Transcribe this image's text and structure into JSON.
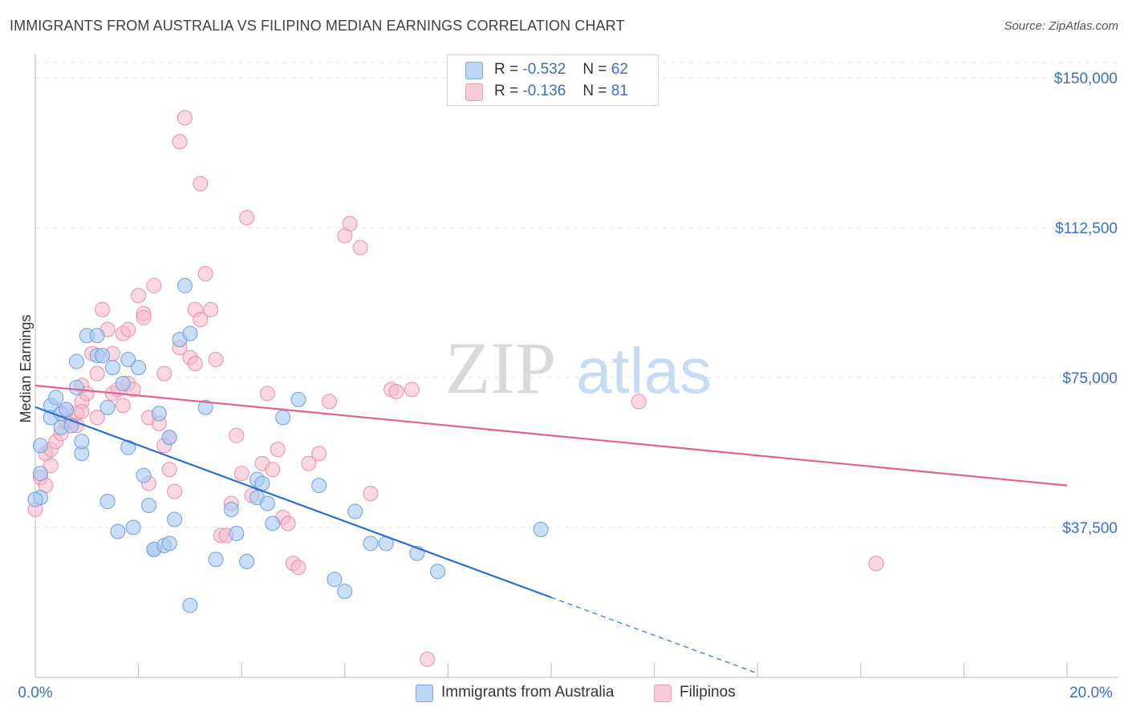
{
  "header": {
    "title": "IMMIGRANTS FROM AUSTRALIA VS FILIPINO MEDIAN EARNINGS CORRELATION CHART",
    "source": "Source: ZipAtlas.com"
  },
  "watermark": {
    "part1": "ZIP",
    "part2": "atlas"
  },
  "legend": {
    "rows": [
      {
        "r_label": "R =",
        "r_value": "-0.532",
        "n_label": "N =",
        "n_value": "62",
        "color": "#a9c8f2"
      },
      {
        "r_label": "R =",
        "r_value": "-0.136",
        "n_label": "N =",
        "n_value": "81",
        "color": "#f6b8cb"
      }
    ]
  },
  "bottom_legend": [
    {
      "label": "Immigrants from Australia",
      "color": "#a9c8f2"
    },
    {
      "label": "Filipinos",
      "color": "#f6b8cb"
    }
  ],
  "chart_data": {
    "type": "scatter",
    "ylabel": "Median Earnings",
    "x_tick_labels": [
      "0.0%",
      "20.0%"
    ],
    "y_tick_labels": [
      "$150,000",
      "$112,500",
      "$75,000",
      "$37,500"
    ],
    "y_ticks": [
      150000,
      112500,
      75000,
      37500
    ],
    "xlim": [
      0,
      20
    ],
    "ylim": [
      0,
      154000
    ],
    "grid": true,
    "colors": {
      "australia_fill": "#a9c8f2",
      "australia_stroke": "#6f9fdc",
      "australia_line": "#2d6fcf",
      "filipino_fill": "#f6b8cb",
      "filipino_stroke": "#ea8fab",
      "filipino_line": "#e0628c"
    },
    "series": [
      {
        "name": "Immigrants from Australia",
        "trend": {
          "x0": 0,
          "y0": 67600,
          "x1": 10,
          "y1": 20000,
          "dash_x1": 14,
          "dash_y1": 1000
        },
        "points": [
          [
            0.1,
            58000
          ],
          [
            0.1,
            51000
          ],
          [
            0.1,
            45000
          ],
          [
            0.3,
            68000
          ],
          [
            0.3,
            65000
          ],
          [
            0.4,
            70000
          ],
          [
            0.5,
            66000
          ],
          [
            0.5,
            62500
          ],
          [
            0.6,
            67000
          ],
          [
            0.7,
            63000
          ],
          [
            0.8,
            79000
          ],
          [
            0.8,
            72500
          ],
          [
            0.9,
            56000
          ],
          [
            0.9,
            59000
          ],
          [
            1.0,
            85500
          ],
          [
            1.2,
            85500
          ],
          [
            1.2,
            80500
          ],
          [
            1.3,
            80500
          ],
          [
            1.4,
            67500
          ],
          [
            1.4,
            44000
          ],
          [
            1.5,
            77500
          ],
          [
            1.6,
            36500
          ],
          [
            1.7,
            73500
          ],
          [
            1.8,
            57500
          ],
          [
            1.8,
            79500
          ],
          [
            1.9,
            37500
          ],
          [
            2.0,
            77500
          ],
          [
            2.1,
            50500
          ],
          [
            2.2,
            43000
          ],
          [
            2.3,
            32000
          ],
          [
            2.3,
            32000
          ],
          [
            2.4,
            66000
          ],
          [
            2.5,
            33000
          ],
          [
            2.6,
            33500
          ],
          [
            2.6,
            60000
          ],
          [
            2.7,
            39500
          ],
          [
            2.8,
            84500
          ],
          [
            2.9,
            98000
          ],
          [
            3.0,
            86000
          ],
          [
            3.0,
            18000
          ],
          [
            3.3,
            67500
          ],
          [
            3.5,
            29500
          ],
          [
            3.8,
            42000
          ],
          [
            3.9,
            36000
          ],
          [
            4.1,
            29000
          ],
          [
            4.3,
            49500
          ],
          [
            4.3,
            45000
          ],
          [
            4.4,
            48500
          ],
          [
            4.5,
            43500
          ],
          [
            4.6,
            38500
          ],
          [
            4.8,
            65000
          ],
          [
            5.1,
            69500
          ],
          [
            5.5,
            48000
          ],
          [
            5.8,
            24500
          ],
          [
            6.0,
            21500
          ],
          [
            6.2,
            41500
          ],
          [
            6.5,
            33500
          ],
          [
            6.8,
            33500
          ],
          [
            7.4,
            31000
          ],
          [
            7.8,
            26500
          ],
          [
            9.8,
            37000
          ],
          [
            0.0,
            44500
          ]
        ]
      },
      {
        "name": "Filipinos",
        "trend": {
          "x0": 0,
          "y0": 73000,
          "x1": 20,
          "y1": 48000
        },
        "points": [
          [
            0.0,
            42000
          ],
          [
            0.1,
            50000
          ],
          [
            0.2,
            48000
          ],
          [
            0.2,
            56000
          ],
          [
            0.3,
            57000
          ],
          [
            0.3,
            53000
          ],
          [
            0.4,
            59000
          ],
          [
            0.5,
            61000
          ],
          [
            0.6,
            64000
          ],
          [
            0.6,
            67000
          ],
          [
            0.7,
            64000
          ],
          [
            0.8,
            63000
          ],
          [
            0.8,
            66000
          ],
          [
            0.9,
            69000
          ],
          [
            0.9,
            73000
          ],
          [
            1.0,
            71000
          ],
          [
            1.1,
            81000
          ],
          [
            1.2,
            76000
          ],
          [
            1.2,
            65000
          ],
          [
            1.3,
            92000
          ],
          [
            1.4,
            87000
          ],
          [
            1.5,
            71000
          ],
          [
            1.5,
            81000
          ],
          [
            1.6,
            72000
          ],
          [
            1.7,
            86000
          ],
          [
            1.7,
            68000
          ],
          [
            1.8,
            73500
          ],
          [
            1.8,
            87000
          ],
          [
            1.9,
            72000
          ],
          [
            2.0,
            95500
          ],
          [
            2.1,
            91000
          ],
          [
            2.1,
            90000
          ],
          [
            2.2,
            65000
          ],
          [
            2.2,
            48500
          ],
          [
            2.3,
            98000
          ],
          [
            2.4,
            63500
          ],
          [
            2.5,
            76000
          ],
          [
            2.5,
            58000
          ],
          [
            2.6,
            60000
          ],
          [
            2.6,
            52000
          ],
          [
            2.7,
            46500
          ],
          [
            2.8,
            82500
          ],
          [
            2.8,
            134000
          ],
          [
            2.9,
            140000
          ],
          [
            3.0,
            80000
          ],
          [
            3.1,
            92000
          ],
          [
            3.1,
            78500
          ],
          [
            3.2,
            89500
          ],
          [
            3.2,
            123500
          ],
          [
            3.3,
            101000
          ],
          [
            3.4,
            92000
          ],
          [
            3.5,
            79500
          ],
          [
            3.6,
            35500
          ],
          [
            3.7,
            35500
          ],
          [
            3.8,
            43500
          ],
          [
            3.9,
            60500
          ],
          [
            4.0,
            51000
          ],
          [
            4.1,
            115000
          ],
          [
            4.2,
            45500
          ],
          [
            4.4,
            53500
          ],
          [
            4.5,
            71000
          ],
          [
            4.6,
            52000
          ],
          [
            4.7,
            57000
          ],
          [
            4.8,
            40000
          ],
          [
            4.9,
            38500
          ],
          [
            5.0,
            28500
          ],
          [
            5.1,
            27500
          ],
          [
            5.3,
            53500
          ],
          [
            5.5,
            56000
          ],
          [
            5.7,
            69000
          ],
          [
            6.0,
            110500
          ],
          [
            6.1,
            113500
          ],
          [
            6.3,
            107500
          ],
          [
            6.5,
            46000
          ],
          [
            6.9,
            72000
          ],
          [
            7.0,
            71500
          ],
          [
            7.3,
            72000
          ],
          [
            7.6,
            4500
          ],
          [
            11.7,
            69000
          ],
          [
            16.3,
            28500
          ],
          [
            0.9,
            66500
          ]
        ]
      }
    ]
  }
}
